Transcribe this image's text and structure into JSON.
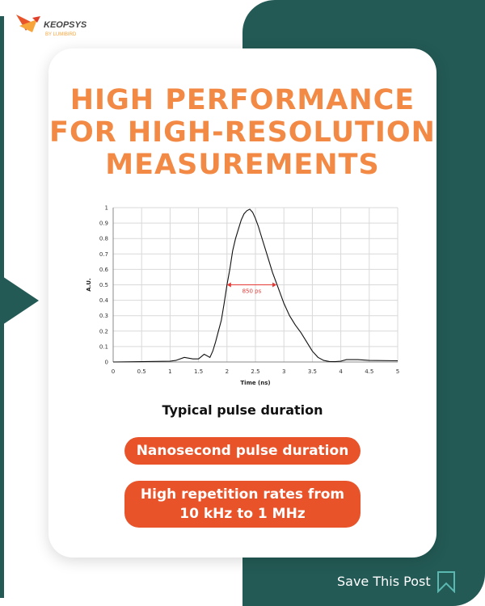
{
  "brand": {
    "name": "KEOPSYS",
    "tagline": "BY LUMIBIRD"
  },
  "headline": [
    "HIGH PERFORMANCE",
    "FOR HIGH-RESOLUTION",
    "MEASUREMENTS"
  ],
  "caption": "Typical pulse duration",
  "features": [
    "Nanosecond pulse duration",
    "High repetition rates from",
    "10 kHz to 1 MHz"
  ],
  "cta": {
    "label": "Save This Post",
    "icon": "bookmark-icon"
  },
  "colors": {
    "teal": "#235a55",
    "title_orange": "#f28a45",
    "pill_orange": "#e8532a",
    "annotation": "#e53935"
  },
  "chart_data": {
    "type": "line",
    "xlabel": "Time (ns)",
    "ylabel": "A.U.",
    "xlim": [
      0,
      5
    ],
    "ylim": [
      0,
      1
    ],
    "xticks": [
      "0",
      "0.5",
      "1",
      "1.5",
      "2",
      "2.5",
      "3",
      "3.5",
      "4",
      "4.5",
      "5"
    ],
    "yticks": [
      "0",
      "0.1",
      "0.2",
      "0.3",
      "0.4",
      "0.5",
      "0.6",
      "0.7",
      "0.8",
      "0.9",
      "1"
    ],
    "grid": true,
    "x": [
      0,
      0.5,
      1,
      1.1,
      1.25,
      1.4,
      1.5,
      1.6,
      1.7,
      1.75,
      1.8,
      1.85,
      1.9,
      1.95,
      2.0,
      2.05,
      2.1,
      2.15,
      2.2,
      2.25,
      2.3,
      2.35,
      2.4,
      2.45,
      2.5,
      2.55,
      2.6,
      2.7,
      2.8,
      2.9,
      3.0,
      3.1,
      3.2,
      3.3,
      3.4,
      3.5,
      3.6,
      3.7,
      3.8,
      3.9,
      4.0,
      4.1,
      4.3,
      4.5,
      5.0
    ],
    "values": [
      0,
      0.002,
      0.005,
      0.01,
      0.03,
      0.02,
      0.02,
      0.05,
      0.03,
      0.07,
      0.13,
      0.2,
      0.27,
      0.38,
      0.5,
      0.6,
      0.72,
      0.8,
      0.86,
      0.92,
      0.96,
      0.98,
      0.99,
      0.97,
      0.93,
      0.88,
      0.82,
      0.7,
      0.58,
      0.48,
      0.38,
      0.3,
      0.24,
      0.19,
      0.13,
      0.07,
      0.03,
      0.01,
      0.003,
      0.002,
      0.005,
      0.015,
      0.015,
      0.01,
      0.008
    ],
    "annotation": {
      "label": "850 ps",
      "x_start": 2.0,
      "x_end": 2.87,
      "y": 0.5
    }
  }
}
